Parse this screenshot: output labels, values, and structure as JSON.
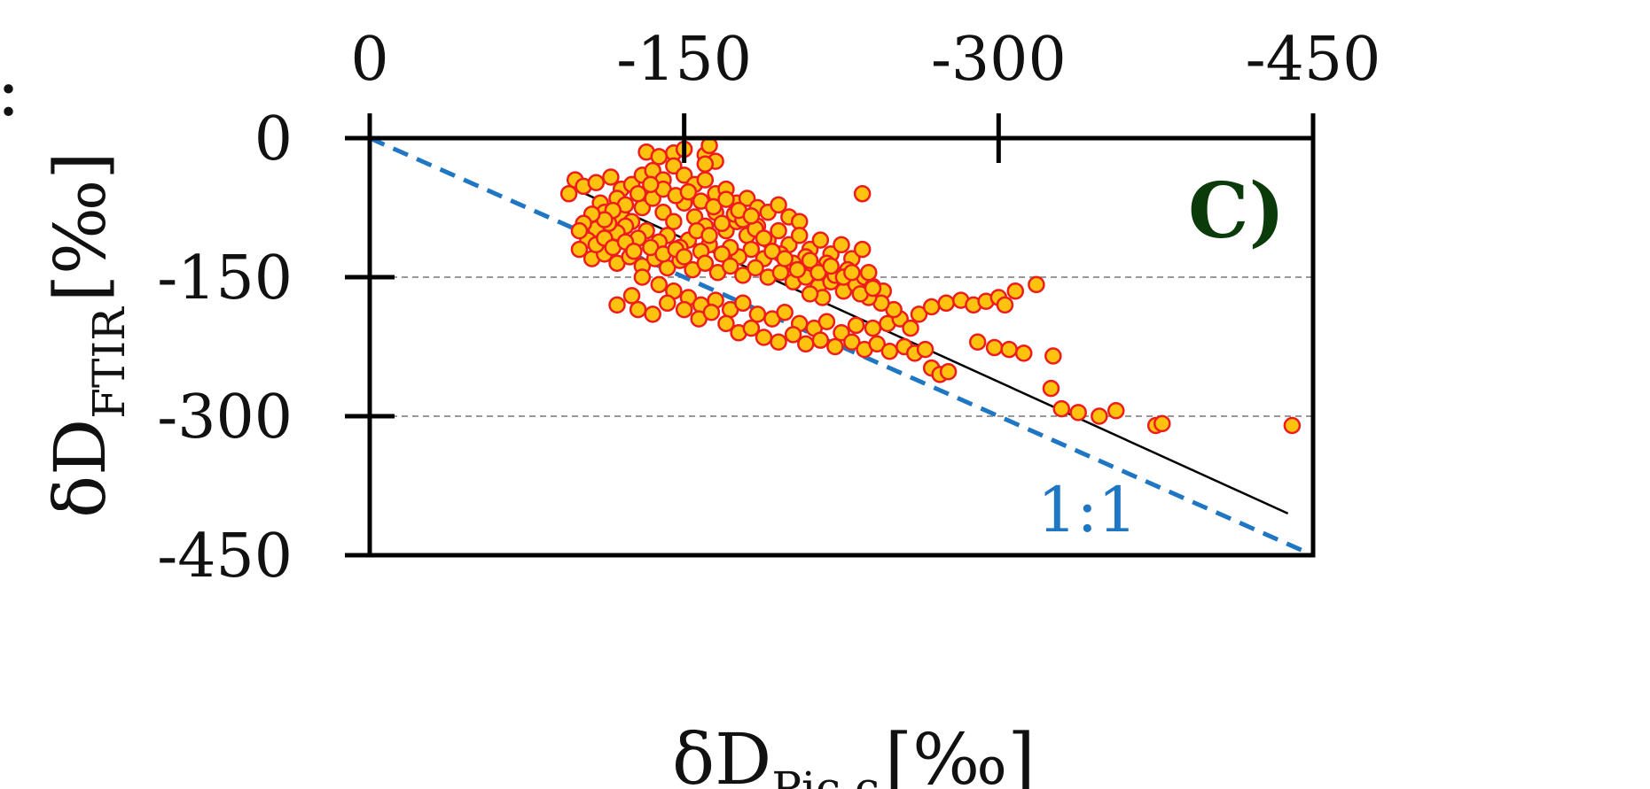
{
  "chart_data": {
    "type": "scatter",
    "panel_label": "C)",
    "stray_text": ":",
    "xlabel": {
      "main": "δD",
      "sub": "Pic,c",
      "unit": "[‰]"
    },
    "ylabel": {
      "main": "δD",
      "sub": "FTIR",
      "unit": "[‰]"
    },
    "xlim": [
      0,
      -450
    ],
    "ylim": [
      0,
      -450
    ],
    "x_ticks": [
      0,
      -150,
      -300,
      -450
    ],
    "y_ticks": [
      0,
      -150,
      -300,
      -450
    ],
    "x_tick_labels": [
      "0",
      "-150",
      "-300",
      "-450"
    ],
    "y_tick_labels": [
      "0",
      "-150",
      "-300",
      "-450"
    ],
    "x_axis_position": "top",
    "grid": {
      "y": [
        -150,
        -300
      ],
      "style": "dashed",
      "color": "#999999"
    },
    "one_to_one": {
      "label": "1:1",
      "color": "#1f77c4",
      "from": [
        0,
        0
      ],
      "to": [
        -450,
        -450
      ]
    },
    "fit_line": {
      "color": "#000000",
      "from": [
        -95,
        -52
      ],
      "to": [
        -438,
        -405
      ]
    },
    "marker": {
      "fill": "#FFC20E",
      "stroke": "#EE1C1C"
    },
    "panel_label_color": "#0B3B0B",
    "points": [
      [
        -132,
        -15
      ],
      [
        -138,
        -20
      ],
      [
        -145,
        -16
      ],
      [
        -150,
        -12
      ],
      [
        -160,
        -18
      ],
      [
        -162,
        -8
      ],
      [
        -165,
        -25
      ],
      [
        -160,
        -28
      ],
      [
        -98,
        -45
      ],
      [
        -102,
        -52
      ],
      [
        -95,
        -60
      ],
      [
        -108,
        -48
      ],
      [
        -115,
        -42
      ],
      [
        -120,
        -55
      ],
      [
        -118,
        -65
      ],
      [
        -125,
        -50
      ],
      [
        -130,
        -40
      ],
      [
        -135,
        -35
      ],
      [
        -140,
        -45
      ],
      [
        -145,
        -30
      ],
      [
        -150,
        -40
      ],
      [
        -155,
        -50
      ],
      [
        -160,
        -45
      ],
      [
        -165,
        -60
      ],
      [
        -170,
        -55
      ],
      [
        -175,
        -70
      ],
      [
        -180,
        -65
      ],
      [
        -185,
        -75
      ],
      [
        -190,
        -80
      ],
      [
        -195,
        -72
      ],
      [
        -200,
        -85
      ],
      [
        -205,
        -90
      ],
      [
        -110,
        -70
      ],
      [
        -112,
        -80
      ],
      [
        -120,
        -85
      ],
      [
        -125,
        -90
      ],
      [
        -130,
        -75
      ],
      [
        -135,
        -65
      ],
      [
        -140,
        -80
      ],
      [
        -145,
        -90
      ],
      [
        -150,
        -70
      ],
      [
        -155,
        -85
      ],
      [
        -160,
        -95
      ],
      [
        -165,
        -80
      ],
      [
        -170,
        -100
      ],
      [
        -175,
        -90
      ],
      [
        -180,
        -105
      ],
      [
        -185,
        -95
      ],
      [
        -190,
        -110
      ],
      [
        -195,
        -100
      ],
      [
        -200,
        -115
      ],
      [
        -205,
        -105
      ],
      [
        -210,
        -120
      ],
      [
        -215,
        -110
      ],
      [
        -220,
        -125
      ],
      [
        -225,
        -115
      ],
      [
        -230,
        -130
      ],
      [
        -235,
        -120
      ],
      [
        -218,
        -135
      ],
      [
        -212,
        -140
      ],
      [
        -208,
        -128
      ],
      [
        -202,
        -135
      ],
      [
        -196,
        -125
      ],
      [
        -188,
        -130
      ],
      [
        -182,
        -120
      ],
      [
        -176,
        -128
      ],
      [
        -172,
        -118
      ],
      [
        -168,
        -125
      ],
      [
        -162,
        -115
      ],
      [
        -158,
        -122
      ],
      [
        -152,
        -110
      ],
      [
        -148,
        -118
      ],
      [
        -142,
        -105
      ],
      [
        -138,
        -112
      ],
      [
        -132,
        -100
      ],
      [
        -128,
        -108
      ],
      [
        -122,
        -95
      ],
      [
        -118,
        -102
      ],
      [
        -114,
        -92
      ],
      [
        -108,
        -98
      ],
      [
        -104,
        -110
      ],
      [
        -100,
        -120
      ],
      [
        -106,
        -130
      ],
      [
        -112,
        -125
      ],
      [
        -118,
        -135
      ],
      [
        -124,
        -128
      ],
      [
        -130,
        -138
      ],
      [
        -136,
        -130
      ],
      [
        -142,
        -140
      ],
      [
        -148,
        -132
      ],
      [
        -154,
        -142
      ],
      [
        -160,
        -135
      ],
      [
        -166,
        -145
      ],
      [
        -172,
        -138
      ],
      [
        -178,
        -148
      ],
      [
        -184,
        -140
      ],
      [
        -190,
        -150
      ],
      [
        -196,
        -145
      ],
      [
        -202,
        -155
      ],
      [
        -208,
        -150
      ],
      [
        -214,
        -160
      ],
      [
        -220,
        -155
      ],
      [
        -226,
        -165
      ],
      [
        -232,
        -158
      ],
      [
        -236,
        -150
      ],
      [
        -240,
        -160
      ],
      [
        -245,
        -165
      ],
      [
        -238,
        -145
      ],
      [
        -228,
        -142
      ],
      [
        -222,
        -148
      ],
      [
        -216,
        -172
      ],
      [
        -210,
        -168
      ],
      [
        -130,
        -150
      ],
      [
        -138,
        -158
      ],
      [
        -145,
        -165
      ],
      [
        -152,
        -172
      ],
      [
        -158,
        -180
      ],
      [
        -165,
        -175
      ],
      [
        -172,
        -185
      ],
      [
        -178,
        -178
      ],
      [
        -185,
        -190
      ],
      [
        -192,
        -195
      ],
      [
        -198,
        -188
      ],
      [
        -205,
        -200
      ],
      [
        -212,
        -205
      ],
      [
        -218,
        -198
      ],
      [
        -225,
        -210
      ],
      [
        -232,
        -202
      ],
      [
        -125,
        -170
      ],
      [
        -118,
        -180
      ],
      [
        -128,
        -185
      ],
      [
        -135,
        -190
      ],
      [
        -142,
        -178
      ],
      [
        -150,
        -185
      ],
      [
        -157,
        -195
      ],
      [
        -163,
        -188
      ],
      [
        -170,
        -200
      ],
      [
        -176,
        -210
      ],
      [
        -182,
        -205
      ],
      [
        -188,
        -215
      ],
      [
        -195,
        -220
      ],
      [
        -202,
        -212
      ],
      [
        -208,
        -222
      ],
      [
        -215,
        -218
      ],
      [
        -222,
        -225
      ],
      [
        -230,
        -220
      ],
      [
        -236,
        -228
      ],
      [
        -242,
        -222
      ],
      [
        -248,
        -230
      ],
      [
        -255,
        -225
      ],
      [
        -260,
        -232
      ],
      [
        -265,
        -228
      ],
      [
        -240,
        -205
      ],
      [
        -247,
        -200
      ],
      [
        -253,
        -195
      ],
      [
        -258,
        -205
      ],
      [
        -262,
        -190
      ],
      [
        -268,
        -182
      ],
      [
        -275,
        -178
      ],
      [
        -282,
        -175
      ],
      [
        -288,
        -180
      ],
      [
        -294,
        -176
      ],
      [
        -300,
        -172
      ],
      [
        -303,
        -180
      ],
      [
        -308,
        -165
      ],
      [
        -318,
        -158
      ],
      [
        -250,
        -185
      ],
      [
        -244,
        -178
      ],
      [
        -238,
        -172
      ],
      [
        -234,
        -168
      ],
      [
        -240,
        -162
      ],
      [
        -235,
        -60
      ],
      [
        -268,
        -248
      ],
      [
        -272,
        -255
      ],
      [
        -276,
        -252
      ],
      [
        -290,
        -220
      ],
      [
        -298,
        -226
      ],
      [
        -305,
        -228
      ],
      [
        -312,
        -232
      ],
      [
        -326,
        -235
      ],
      [
        -325,
        -270
      ],
      [
        -330,
        -292
      ],
      [
        -338,
        -296
      ],
      [
        -348,
        -300
      ],
      [
        -356,
        -294
      ],
      [
        -375,
        -310
      ],
      [
        -378,
        -308
      ],
      [
        -440,
        -310
      ],
      [
        -108,
        -115
      ],
      [
        -112,
        -108
      ],
      [
        -116,
        -118
      ],
      [
        -122,
        -112
      ],
      [
        -126,
        -122
      ],
      [
        -134,
        -118
      ],
      [
        -140,
        -125
      ],
      [
        -146,
        -120
      ],
      [
        -150,
        -128
      ],
      [
        -156,
        -100
      ],
      [
        -162,
        -105
      ],
      [
        -168,
        -92
      ],
      [
        -174,
        -82
      ],
      [
        -178,
        -88
      ],
      [
        -184,
        -98
      ],
      [
        -188,
        -108
      ],
      [
        -192,
        -122
      ],
      [
        -198,
        -130
      ],
      [
        -204,
        -142
      ],
      [
        -210,
        -132
      ],
      [
        -214,
        -145
      ],
      [
        -220,
        -138
      ],
      [
        -226,
        -150
      ],
      [
        -230,
        -145
      ],
      [
        -140,
        -55
      ],
      [
        -146,
        -62
      ],
      [
        -152,
        -58
      ],
      [
        -158,
        -68
      ],
      [
        -164,
        -74
      ],
      [
        -170,
        -66
      ],
      [
        -176,
        -78
      ],
      [
        -182,
        -84
      ],
      [
        -134,
        -50
      ],
      [
        -128,
        -60
      ],
      [
        -122,
        -72
      ],
      [
        -116,
        -78
      ],
      [
        -112,
        -88
      ],
      [
        -106,
        -82
      ],
      [
        -102,
        -92
      ],
      [
        -100,
        -100
      ]
    ]
  }
}
